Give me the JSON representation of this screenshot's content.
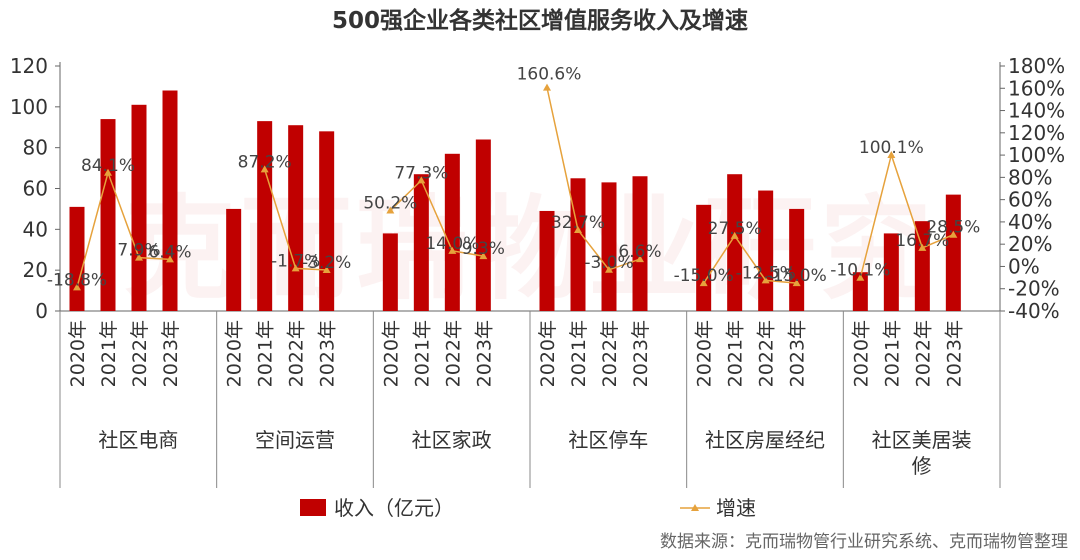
{
  "chart_data": {
    "type": "bar",
    "title": "500强企业各类社区增值服务收入及增速",
    "groups": [
      "社区电商",
      "空间运营",
      "社区家政",
      "社区停车",
      "社区房屋经纪",
      "社区美居装修"
    ],
    "years": [
      "2020年",
      "2021年",
      "2022年",
      "2023年"
    ],
    "series": [
      {
        "name": "收入（亿元）",
        "kind": "bar",
        "axis": "left",
        "color": "#c00000",
        "values": [
          [
            51,
            94,
            101,
            108
          ],
          [
            50,
            93,
            91,
            88
          ],
          [
            38,
            67,
            77,
            84
          ],
          [
            49,
            65,
            63,
            66
          ],
          [
            52,
            67,
            59,
            50
          ],
          [
            19,
            38,
            44,
            57
          ]
        ]
      },
      {
        "name": "增速",
        "kind": "line",
        "axis": "right",
        "color": "#e6a23c",
        "values": [
          [
            -18.8,
            84.1,
            7.9,
            6.4
          ],
          [
            null,
            87.2,
            -1.7,
            -3.2
          ],
          [
            50.2,
            77.3,
            14.0,
            9.3
          ],
          [
            160.6,
            32.7,
            -3.0,
            6.6
          ],
          [
            -15.0,
            27.5,
            -12.5,
            -15.0
          ],
          [
            -10.1,
            100.1,
            16.7,
            28.5
          ]
        ],
        "labels": [
          [
            "-18.8%",
            "84.1%",
            "7.9%",
            "6.4%"
          ],
          [
            "",
            "87.2%",
            "-1.7%",
            "-3.2%"
          ],
          [
            "50.2%",
            "77.3%",
            "14.0%",
            "9.3%"
          ],
          [
            "160.6%",
            "32.7%",
            "-3.0%",
            "6.6%"
          ],
          [
            "-15.0%",
            "27.5%",
            "-12.5%",
            "-15.0%"
          ],
          [
            "-10.1%",
            "100.1%",
            "16.7%",
            "28.5%"
          ]
        ]
      }
    ],
    "y_left": {
      "min": 0,
      "max": 120,
      "ticks": [
        0,
        20,
        40,
        60,
        80,
        100,
        120
      ]
    },
    "y_right": {
      "min": -40,
      "max": 180,
      "ticks": [
        -40,
        -20,
        0,
        20,
        40,
        60,
        80,
        100,
        120,
        140,
        160,
        180
      ],
      "tick_labels": [
        "-40%",
        "-20%",
        "0%",
        "20%",
        "40%",
        "60%",
        "80%",
        "100%",
        "120%",
        "140%",
        "160%",
        "180%"
      ]
    },
    "group_label_lines": [
      [
        "社区电商"
      ],
      [
        "空间运营"
      ],
      [
        "社区家政"
      ],
      [
        "社区停车"
      ],
      [
        "社区房屋经纪"
      ],
      [
        "社区美居装",
        "修"
      ]
    ],
    "legend_position": "bottom",
    "grid": false,
    "watermark": "克而瑞物业研究",
    "source": "数据来源：克而瑞物管行业研究系统、克而瑞物管整理"
  }
}
